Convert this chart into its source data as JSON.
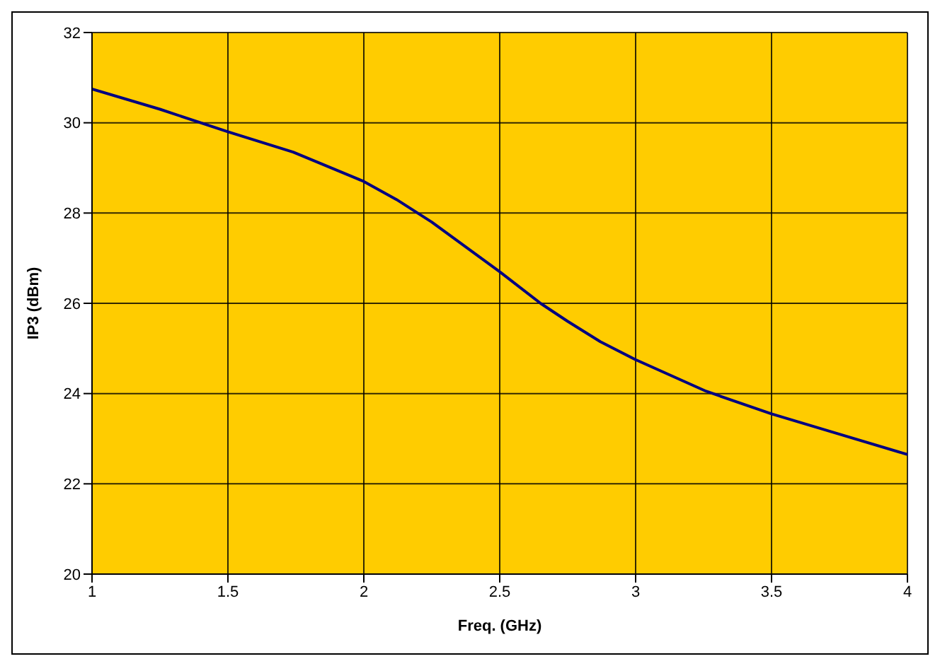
{
  "chart_data": {
    "type": "line",
    "xlabel": "Freq. (GHz)",
    "ylabel": "IP3 (dBm)",
    "x": [
      1,
      1.25,
      1.5,
      1.74,
      2,
      2.12,
      2.25,
      2.5,
      2.65,
      2.75,
      2.87,
      3,
      3.26,
      3.5,
      3.75,
      4
    ],
    "series": [
      {
        "color": "#000080",
        "values": [
          30.75,
          30.3,
          29.8,
          29.35,
          28.7,
          28.3,
          27.8,
          26.7,
          26.0,
          25.6,
          25.15,
          24.75,
          24.05,
          23.55,
          23.1,
          22.65
        ]
      }
    ],
    "xlim": [
      1,
      4
    ],
    "xticks": [
      1,
      1.5,
      2,
      2.5,
      3,
      3.5,
      4
    ],
    "ylim": [
      20,
      32
    ],
    "yticks": [
      20,
      22,
      24,
      26,
      28,
      30,
      32
    ],
    "grid": true,
    "legend": false,
    "marker": "none",
    "line_style": "solid"
  }
}
